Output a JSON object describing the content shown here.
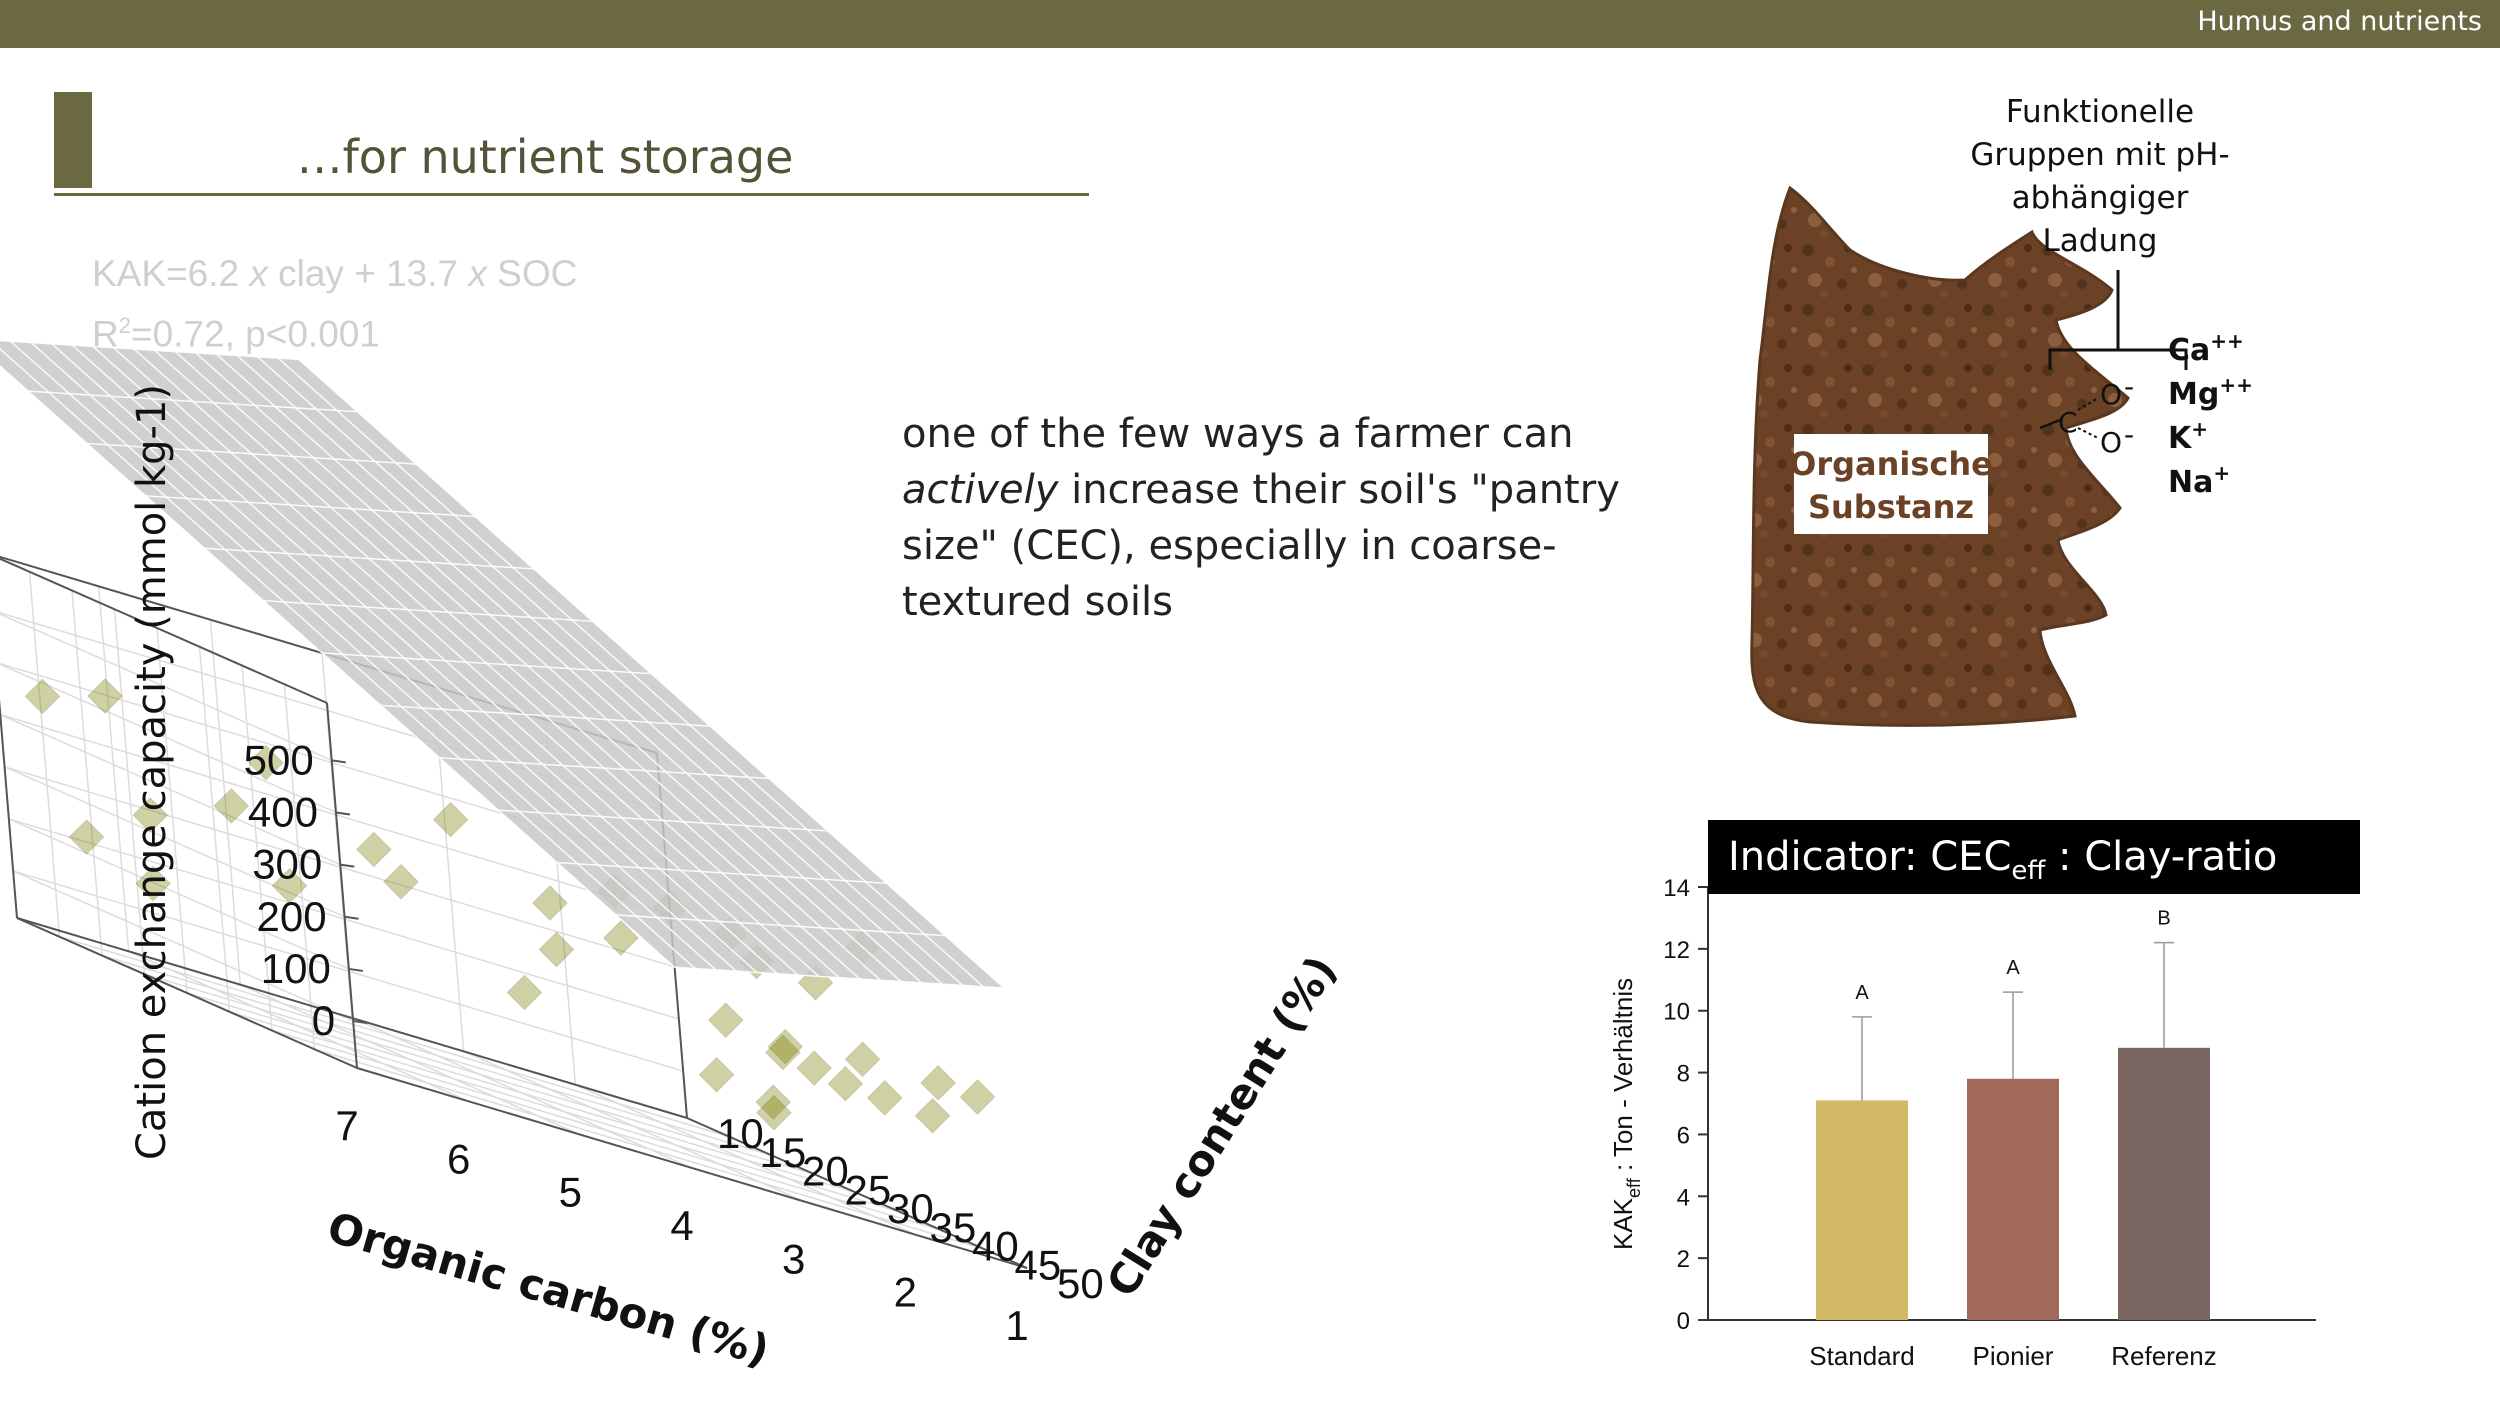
{
  "header": {
    "section_label": "Humus and nutrients",
    "title": "…for nutrient storage"
  },
  "formula": {
    "line1_prefix": "KAK=6.2 ",
    "x1": "x",
    "line1_mid": " clay + 13.7 ",
    "x2": "x",
    "line1_suffix": " SOC",
    "line2_r": "R",
    "line2_sup": "2",
    "line2_rest": "=0.72, p<0.001"
  },
  "callout": {
    "part1": "one of the few ways a farmer can ",
    "italic": "actively",
    "part2": " increase their soil's \"pantry size\" (CEC), especially in coarse-textured soils"
  },
  "organic_figure": {
    "label_line1": "Organische",
    "label_line2": "Substanz",
    "annotation": [
      "Funktionelle",
      "Gruppen mit pH-",
      "abhängiger",
      "Ladung"
    ],
    "ions": [
      {
        "base": "Ca",
        "charge": "++"
      },
      {
        "base": "Mg",
        "charge": "++"
      },
      {
        "base": "K",
        "charge": "+"
      },
      {
        "base": "Na",
        "charge": "+"
      }
    ],
    "carboxyl_o": "O",
    "carboxyl_c": "C",
    "carboxyl_minus": "-",
    "substance_color": "#6b4226"
  },
  "colors": {
    "bar": "#6b6942",
    "marker": "#7a7a00",
    "plane": "#c8c8c8"
  },
  "chart_data": [
    {
      "type": "scatter",
      "subtype": "3d-scatter-with-regression-plane",
      "xlabel": "Organic carbon (%)",
      "ylabel": "Clay content (%)",
      "zlabel": "Cation exchange capacity (mmol kg-1)",
      "x_ticks": [
        "7",
        "6",
        "5",
        "4",
        "3",
        "2",
        "1"
      ],
      "y_ticks": [
        "10",
        "15",
        "20",
        "25",
        "30",
        "35",
        "40",
        "45",
        "50"
      ],
      "z_ticks": [
        "0",
        "100",
        "200",
        "300",
        "400",
        "500"
      ],
      "xlim": [
        1,
        7
      ],
      "ylim": [
        10,
        50
      ],
      "zlim": [
        0,
        500
      ],
      "grid": true,
      "plane": {
        "clay_coef": 6.2,
        "soc_coef": 13.7
      },
      "points": [
        {
          "soc": 6.9,
          "clay": 14,
          "cec": 370
        },
        {
          "soc": 6.4,
          "clay": 15,
          "cec": 410
        },
        {
          "soc": 5.5,
          "clay": 22,
          "cec": 390
        },
        {
          "soc": 4.9,
          "clay": 36,
          "cec": 420
        },
        {
          "soc": 3.9,
          "clay": 42,
          "cec": 390
        },
        {
          "soc": 3.1,
          "clay": 38,
          "cec": 380
        },
        {
          "soc": 2.8,
          "clay": 41,
          "cec": 370
        },
        {
          "soc": 2.5,
          "clay": 40,
          "cec": 330
        },
        {
          "soc": 2.2,
          "clay": 43,
          "cec": 330
        },
        {
          "soc": 1.9,
          "clay": 45,
          "cec": 430
        },
        {
          "soc": 5.7,
          "clay": 20,
          "cec": 280
        },
        {
          "soc": 4.8,
          "clay": 25,
          "cec": 290
        },
        {
          "soc": 3.6,
          "clay": 30,
          "cec": 300
        },
        {
          "soc": 3.2,
          "clay": 33,
          "cec": 280
        },
        {
          "soc": 4.5,
          "clay": 24,
          "cec": 240
        },
        {
          "soc": 6.0,
          "clay": 14,
          "cec": 200
        },
        {
          "soc": 3.5,
          "clay": 29,
          "cec": 210
        },
        {
          "soc": 5.0,
          "clay": 17,
          "cec": 150
        },
        {
          "soc": 2.3,
          "clay": 33,
          "cec": 180
        },
        {
          "soc": 2.0,
          "clay": 36,
          "cec": 170
        },
        {
          "soc": 1.6,
          "clay": 40,
          "cec": 200
        },
        {
          "soc": 1.3,
          "clay": 45,
          "cec": 210
        },
        {
          "soc": 1.1,
          "clay": 47,
          "cec": 210
        },
        {
          "soc": 1.8,
          "clay": 33,
          "cec": 150
        },
        {
          "soc": 1.6,
          "clay": 34,
          "cec": 140
        },
        {
          "soc": 1.4,
          "clay": 35,
          "cec": 130
        },
        {
          "soc": 1.2,
          "clay": 37,
          "cec": 130
        },
        {
          "soc": 1.0,
          "clay": 40,
          "cec": 130
        },
        {
          "soc": 6.3,
          "clay": 10,
          "cec": 110
        },
        {
          "soc": 5.8,
          "clay": 11,
          "cec": 60
        },
        {
          "soc": 3.3,
          "clay": 22,
          "cec": 90
        },
        {
          "soc": 2.2,
          "clay": 30,
          "cec": 60
        },
        {
          "soc": 1.4,
          "clay": 26,
          "cec": 30
        },
        {
          "soc": 1.1,
          "clay": 22,
          "cec": 0
        }
      ]
    },
    {
      "type": "bar",
      "title_main": "Indicator: CEC",
      "title_sub": "eff",
      "title_rest": " : Clay-ratio",
      "ylabel_main": "KAK",
      "ylabel_sub": "eff",
      "ylabel_rest": " : Ton - Verhältnis",
      "categories": [
        "Standard",
        "Pionier",
        "Referenz"
      ],
      "values": [
        7.1,
        7.8,
        8.8
      ],
      "errors": [
        2.7,
        2.8,
        3.4
      ],
      "significance": [
        "A",
        "A",
        "B"
      ],
      "bar_colors": [
        "#d1b865",
        "#a0695a",
        "#7a6561"
      ],
      "ylim": [
        0,
        14
      ],
      "yticks": [
        "0",
        "2",
        "4",
        "6",
        "8",
        "10",
        "12",
        "14"
      ]
    }
  ]
}
